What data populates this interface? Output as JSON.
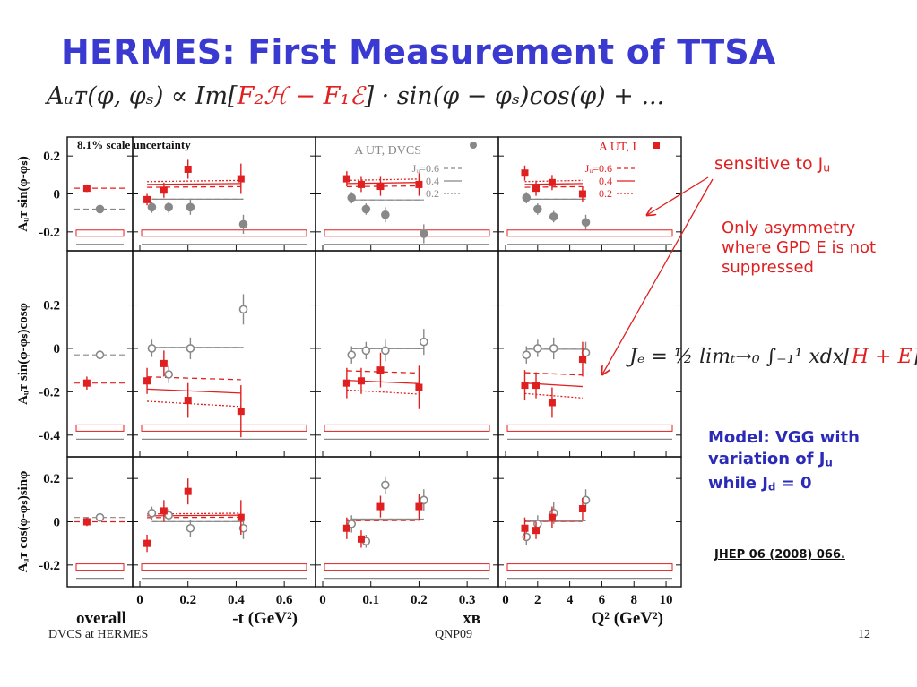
{
  "title": "HERMES: First Measurement of TTSA",
  "formula": {
    "pre": "Aᵤᴛ(φ, φₛ) ∝ Im[",
    "red": "F₂ℋ − F₁ℰ",
    "post": "] · sin(φ − φₛ)cos(φ) + ..."
  },
  "annotations": {
    "sensitive": "sensitive to J",
    "sensitive_sub": "u",
    "only_asym": "Only asymmetry where GPD E is not suppressed",
    "jq_formula": "Jₑ = ½ limₜ→₀ ∫₋₁¹ xdx[",
    "jq_red": "H + E",
    "jq_close": "]",
    "model_line1": "Model: VGG with",
    "model_line2": "variation of J",
    "model_sub1": "u",
    "model_line3": "while J",
    "model_sub2": "d",
    "model_tail": " = 0",
    "reference": "JHEP 06 (2008) 066."
  },
  "footer": {
    "left": "DVCS at HERMES",
    "center": "QNP09",
    "right": "12"
  },
  "colors": {
    "title": "#3a3ad0",
    "dvcs": "#e02020",
    "grey": "#888888",
    "model_text": "#2b2bb8"
  },
  "chart_data": {
    "type": "scatter",
    "scale_note": "8.1% scale uncertainty",
    "columns": [
      {
        "key": "overall",
        "xlabel": "overall",
        "xlim": [
          0,
          1
        ],
        "ticks": []
      },
      {
        "key": "t",
        "xlabel": "-t (GeV²)",
        "xlim": [
          0,
          0.7
        ],
        "ticks": [
          "0",
          "0.2",
          "0.4",
          "0.6"
        ],
        "tickvals": [
          0,
          0.2,
          0.4,
          0.6
        ]
      },
      {
        "key": "xb",
        "xlabel": "xʙ",
        "xlim": [
          0,
          0.35
        ],
        "ticks": [
          "0",
          "0.1",
          "0.2",
          "0.3"
        ],
        "tickvals": [
          0,
          0.1,
          0.2,
          0.3
        ]
      },
      {
        "key": "q2",
        "xlabel": "Q² (GeV²)",
        "xlim": [
          0,
          10.5
        ],
        "ticks": [
          "0",
          "2",
          "4",
          "6",
          "8",
          "10"
        ],
        "tickvals": [
          0,
          2,
          4,
          6,
          8,
          10
        ]
      }
    ],
    "rows": [
      {
        "label": "Aᵤᴛ sin(φ-φₛ)",
        "ylim": [
          -0.3,
          0.3
        ],
        "ticks": [
          "0.2",
          "0",
          "-0.2"
        ],
        "tickvals": [
          0.2,
          0,
          -0.2
        ],
        "I": {
          "overall": [
            {
              "x": 0.3,
              "y": 0.03,
              "e": 0.02
            }
          ],
          "t": [
            {
              "x": 0.03,
              "y": -0.03,
              "e": 0.03
            },
            {
              "x": 0.1,
              "y": 0.02,
              "e": 0.04
            },
            {
              "x": 0.2,
              "y": 0.13,
              "e": 0.05
            },
            {
              "x": 0.42,
              "y": 0.08,
              "e": 0.08
            }
          ],
          "xb": [
            {
              "x": 0.05,
              "y": 0.08,
              "e": 0.04
            },
            {
              "x": 0.08,
              "y": 0.05,
              "e": 0.04
            },
            {
              "x": 0.12,
              "y": 0.04,
              "e": 0.05
            },
            {
              "x": 0.2,
              "y": 0.05,
              "e": 0.06
            }
          ],
          "q2": [
            {
              "x": 1.2,
              "y": 0.11,
              "e": 0.04
            },
            {
              "x": 1.9,
              "y": 0.03,
              "e": 0.04
            },
            {
              "x": 2.9,
              "y": 0.06,
              "e": 0.04
            },
            {
              "x": 4.8,
              "y": 0.0,
              "e": 0.04
            }
          ]
        },
        "DVCS": {
          "overall": [
            {
              "x": 0.5,
              "y": -0.08,
              "e": 0.01
            }
          ],
          "t": [
            {
              "x": 0.05,
              "y": -0.07,
              "e": 0.03
            },
            {
              "x": 0.12,
              "y": -0.07,
              "e": 0.03
            },
            {
              "x": 0.21,
              "y": -0.07,
              "e": 0.04
            },
            {
              "x": 0.43,
              "y": -0.16,
              "e": 0.05
            }
          ],
          "xb": [
            {
              "x": 0.06,
              "y": -0.02,
              "e": 0.03
            },
            {
              "x": 0.09,
              "y": -0.08,
              "e": 0.03
            },
            {
              "x": 0.13,
              "y": -0.11,
              "e": 0.04
            },
            {
              "x": 0.21,
              "y": -0.21,
              "e": 0.05
            }
          ],
          "q2": [
            {
              "x": 1.3,
              "y": -0.02,
              "e": 0.03
            },
            {
              "x": 2.0,
              "y": -0.08,
              "e": 0.03
            },
            {
              "x": 3.0,
              "y": -0.12,
              "e": 0.03
            },
            {
              "x": 5.0,
              "y": -0.15,
              "e": 0.04
            }
          ]
        }
      },
      {
        "label": "Aᵤᴛ sin(φ-φₛ)cosφ",
        "ylim": [
          -0.5,
          0.45
        ],
        "ticks": [
          "0.2",
          "0",
          "-0.2",
          "-0.4"
        ],
        "tickvals": [
          0.2,
          0,
          -0.2,
          -0.4
        ],
        "I": {
          "overall": [
            {
              "x": 0.3,
              "y": -0.16,
              "e": 0.03
            }
          ],
          "t": [
            {
              "x": 0.03,
              "y": -0.15,
              "e": 0.06
            },
            {
              "x": 0.1,
              "y": -0.07,
              "e": 0.06
            },
            {
              "x": 0.2,
              "y": -0.24,
              "e": 0.08
            },
            {
              "x": 0.42,
              "y": -0.29,
              "e": 0.12
            }
          ],
          "xb": [
            {
              "x": 0.05,
              "y": -0.16,
              "e": 0.07
            },
            {
              "x": 0.08,
              "y": -0.15,
              "e": 0.06
            },
            {
              "x": 0.12,
              "y": -0.1,
              "e": 0.08
            },
            {
              "x": 0.2,
              "y": -0.18,
              "e": 0.1
            }
          ],
          "q2": [
            {
              "x": 1.2,
              "y": -0.17,
              "e": 0.07
            },
            {
              "x": 1.9,
              "y": -0.17,
              "e": 0.06
            },
            {
              "x": 2.9,
              "y": -0.25,
              "e": 0.07
            },
            {
              "x": 4.8,
              "y": -0.05,
              "e": 0.08
            }
          ]
        },
        "DVCS": {
          "overall": [
            {
              "x": 0.5,
              "y": -0.03,
              "e": 0.02
            }
          ],
          "t": [
            {
              "x": 0.05,
              "y": 0.0,
              "e": 0.04
            },
            {
              "x": 0.12,
              "y": -0.12,
              "e": 0.04
            },
            {
              "x": 0.21,
              "y": 0.0,
              "e": 0.05
            },
            {
              "x": 0.43,
              "y": 0.18,
              "e": 0.07
            }
          ],
          "xb": [
            {
              "x": 0.06,
              "y": -0.03,
              "e": 0.04
            },
            {
              "x": 0.09,
              "y": -0.01,
              "e": 0.04
            },
            {
              "x": 0.13,
              "y": -0.01,
              "e": 0.05
            },
            {
              "x": 0.21,
              "y": 0.03,
              "e": 0.06
            }
          ],
          "q2": [
            {
              "x": 1.3,
              "y": -0.03,
              "e": 0.04
            },
            {
              "x": 2.0,
              "y": 0.0,
              "e": 0.04
            },
            {
              "x": 3.0,
              "y": 0.0,
              "e": 0.05
            },
            {
              "x": 5.0,
              "y": -0.02,
              "e": 0.05
            }
          ]
        }
      },
      {
        "label": "Aᵤᴛ cos(φ-φₛ)sinφ",
        "ylim": [
          -0.3,
          0.3
        ],
        "ticks": [
          "0.2",
          "0",
          "-0.2"
        ],
        "tickvals": [
          0.2,
          0,
          -0.2
        ],
        "I": {
          "overall": [
            {
              "x": 0.3,
              "y": 0.0,
              "e": 0.02
            }
          ],
          "t": [
            {
              "x": 0.03,
              "y": -0.1,
              "e": 0.04
            },
            {
              "x": 0.1,
              "y": 0.05,
              "e": 0.05
            },
            {
              "x": 0.2,
              "y": 0.14,
              "e": 0.06
            },
            {
              "x": 0.42,
              "y": 0.02,
              "e": 0.08
            }
          ],
          "xb": [
            {
              "x": 0.05,
              "y": -0.03,
              "e": 0.05
            },
            {
              "x": 0.08,
              "y": -0.08,
              "e": 0.04
            },
            {
              "x": 0.12,
              "y": 0.07,
              "e": 0.05
            },
            {
              "x": 0.2,
              "y": 0.07,
              "e": 0.06
            }
          ],
          "q2": [
            {
              "x": 1.2,
              "y": -0.03,
              "e": 0.05
            },
            {
              "x": 1.9,
              "y": -0.04,
              "e": 0.04
            },
            {
              "x": 2.9,
              "y": 0.02,
              "e": 0.05
            },
            {
              "x": 4.8,
              "y": 0.06,
              "e": 0.05
            }
          ]
        },
        "DVCS": {
          "overall": [
            {
              "x": 0.5,
              "y": 0.02,
              "e": 0.01
            }
          ],
          "t": [
            {
              "x": 0.05,
              "y": 0.04,
              "e": 0.03
            },
            {
              "x": 0.12,
              "y": 0.03,
              "e": 0.03
            },
            {
              "x": 0.21,
              "y": -0.03,
              "e": 0.04
            },
            {
              "x": 0.43,
              "y": -0.03,
              "e": 0.05
            }
          ],
          "xb": [
            {
              "x": 0.06,
              "y": -0.01,
              "e": 0.04
            },
            {
              "x": 0.09,
              "y": -0.09,
              "e": 0.03
            },
            {
              "x": 0.13,
              "y": 0.17,
              "e": 0.04
            },
            {
              "x": 0.21,
              "y": 0.1,
              "e": 0.05
            }
          ],
          "q2": [
            {
              "x": 1.3,
              "y": -0.07,
              "e": 0.04
            },
            {
              "x": 2.0,
              "y": -0.01,
              "e": 0.04
            },
            {
              "x": 3.0,
              "y": 0.04,
              "e": 0.05
            },
            {
              "x": 5.0,
              "y": 0.1,
              "e": 0.05
            }
          ]
        }
      }
    ],
    "legend": {
      "placement": "top-right",
      "entries": [
        {
          "label": "A UT, DVCS",
          "marker": "open-circle",
          "color": "#888888"
        },
        {
          "label": "A UT, I",
          "marker": "filled-square",
          "color": "#e02020"
        }
      ],
      "model_lines": [
        {
          "label": "Jᵤ=0.6",
          "style": "dashed"
        },
        {
          "label": "0.4",
          "style": "solid"
        },
        {
          "label": "0.2",
          "style": "dotted"
        }
      ]
    }
  }
}
